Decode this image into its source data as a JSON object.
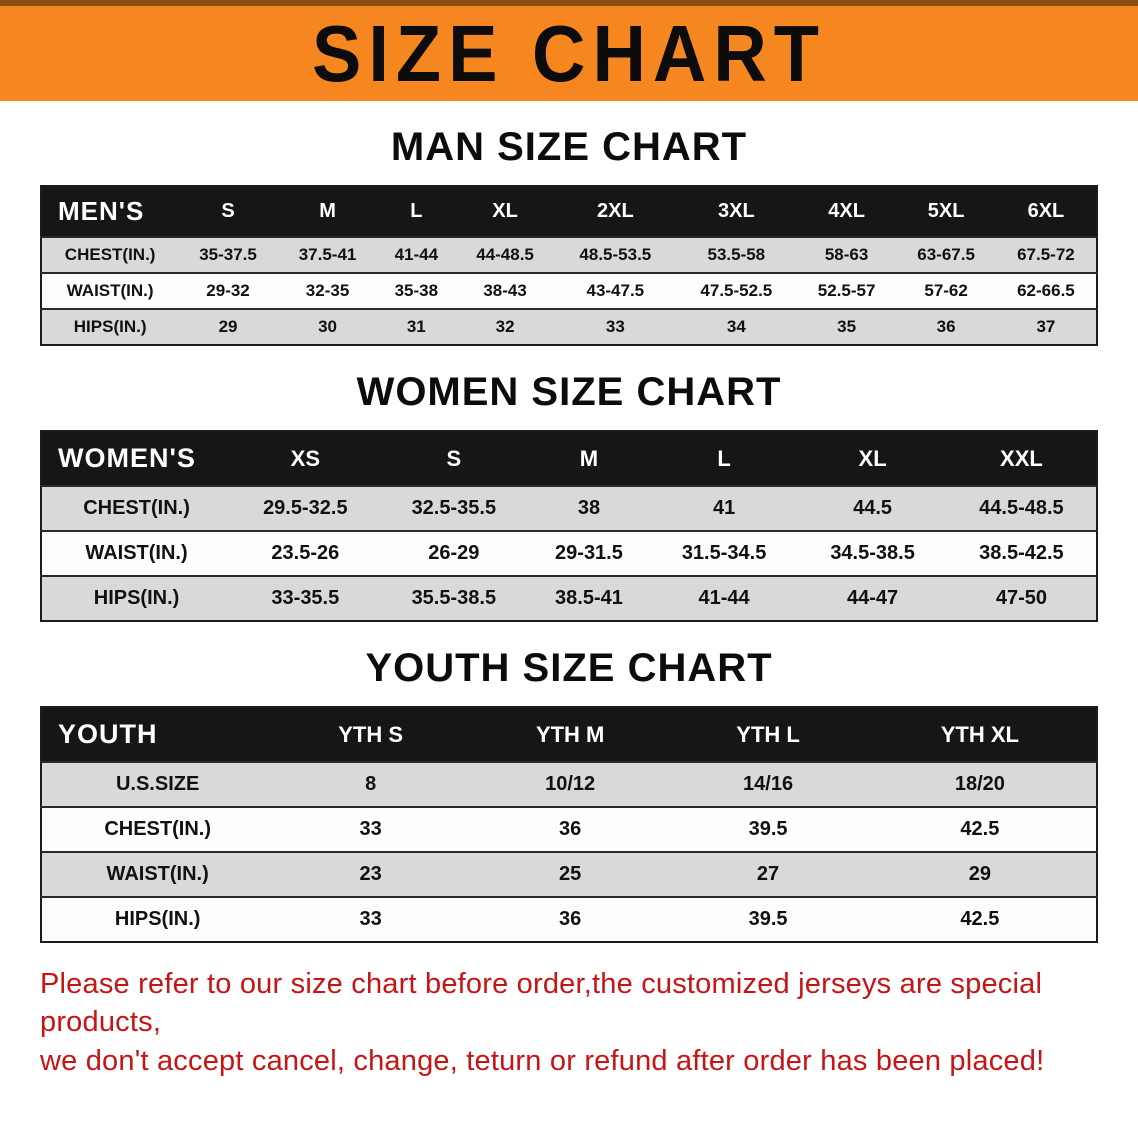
{
  "banner": {
    "title": "SIZE CHART"
  },
  "colors": {
    "banner_bg": "#f6861f",
    "banner_top_edge": "#8a4d10",
    "table_header_bg": "#161616",
    "table_header_text": "#ffffff",
    "row_stripe": "#d9d9d9",
    "notice_text": "#c81414",
    "title_text": "#0c0c0c"
  },
  "sections": [
    {
      "id": "men",
      "heading": "MAN SIZE CHART",
      "table": {
        "header": [
          "MEN'S",
          "S",
          "M",
          "L",
          "XL",
          "2XL",
          "3XL",
          "4XL",
          "5XL",
          "6XL"
        ],
        "rows": [
          [
            "CHEST(IN.)",
            "35-37.5",
            "37.5-41",
            "41-44",
            "44-48.5",
            "48.5-53.5",
            "53.5-58",
            "58-63",
            "63-67.5",
            "67.5-72"
          ],
          [
            "WAIST(IN.)",
            "29-32",
            "32-35",
            "35-38",
            "38-43",
            "43-47.5",
            "47.5-52.5",
            "52.5-57",
            "57-62",
            "62-66.5"
          ],
          [
            "HIPS(IN.)",
            "29",
            "30",
            "31",
            "32",
            "33",
            "34",
            "35",
            "36",
            "37"
          ]
        ]
      }
    },
    {
      "id": "women",
      "heading": "WOMEN SIZE CHART",
      "table": {
        "header": [
          "WOMEN'S",
          "XS",
          "S",
          "M",
          "L",
          "XL",
          "XXL"
        ],
        "rows": [
          [
            "CHEST(IN.)",
            "29.5-32.5",
            "32.5-35.5",
            "38",
            "41",
            "44.5",
            "44.5-48.5"
          ],
          [
            "WAIST(IN.)",
            "23.5-26",
            "26-29",
            "29-31.5",
            "31.5-34.5",
            "34.5-38.5",
            "38.5-42.5"
          ],
          [
            "HIPS(IN.)",
            "33-35.5",
            "35.5-38.5",
            "38.5-41",
            "41-44",
            "44-47",
            "47-50"
          ]
        ]
      }
    },
    {
      "id": "youth",
      "heading": "YOUTH SIZE CHART",
      "table": {
        "header": [
          "YOUTH",
          "YTH S",
          "YTH M",
          "YTH L",
          "YTH XL"
        ],
        "rows": [
          [
            "U.S.SIZE",
            "8",
            "10/12",
            "14/16",
            "18/20"
          ],
          [
            "CHEST(IN.)",
            "33",
            "36",
            "39.5",
            "42.5"
          ],
          [
            "WAIST(IN.)",
            "23",
            "25",
            "27",
            "29"
          ],
          [
            "HIPS(IN.)",
            "33",
            "36",
            "39.5",
            "42.5"
          ]
        ]
      }
    }
  ],
  "footer": {
    "line1": "Please refer to our size chart before order,the customized jerseys are special products,",
    "line2": "we don't accept cancel, change, teturn or refund after order has been placed!"
  }
}
